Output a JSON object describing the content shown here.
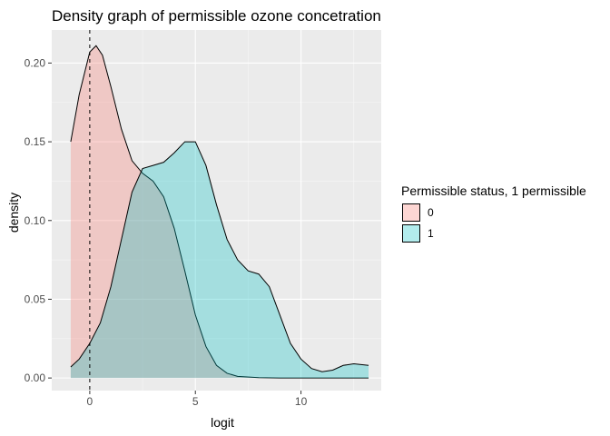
{
  "chart_data": {
    "type": "area",
    "title": "Density graph of permissible ozone concetration",
    "xlabel": "logit",
    "ylabel": "density",
    "xlim": [
      -1.8,
      13.8
    ],
    "ylim": [
      -0.008,
      0.221
    ],
    "x_ticks": [
      0,
      5,
      10
    ],
    "y_ticks": [
      0.0,
      0.05,
      0.1,
      0.15,
      0.2
    ],
    "y_tick_labels": [
      "0.00",
      "0.05",
      "0.10",
      "0.15",
      "0.20"
    ],
    "grid": true,
    "background": "#EBEBEB",
    "vline": {
      "x": 0,
      "style": "dashed"
    },
    "legend": {
      "title": "Permissible status, 1 permissible",
      "position": "right"
    },
    "series": [
      {
        "name": "0",
        "fill": "#F8766D",
        "x": [
          -0.9,
          -0.5,
          0.0,
          0.3,
          0.6,
          1.0,
          1.5,
          2.0,
          2.5,
          3.0,
          3.5,
          4.0,
          4.5,
          5.0,
          5.5,
          6.0,
          6.5,
          7.0,
          8.0,
          9.0,
          10.0,
          11.0,
          12.0,
          13.2
        ],
        "y": [
          0.15,
          0.18,
          0.207,
          0.211,
          0.205,
          0.185,
          0.158,
          0.138,
          0.13,
          0.125,
          0.115,
          0.095,
          0.068,
          0.04,
          0.02,
          0.008,
          0.003,
          0.001,
          0.0002,
          0.0,
          0.0,
          0.0,
          0.0,
          0.0
        ]
      },
      {
        "name": "1",
        "fill": "#00BFC4",
        "x": [
          -0.9,
          -0.5,
          0.0,
          0.5,
          1.0,
          1.5,
          2.0,
          2.5,
          3.0,
          3.5,
          4.0,
          4.5,
          5.0,
          5.5,
          6.0,
          6.5,
          7.0,
          7.5,
          8.0,
          8.5,
          9.0,
          9.5,
          10.0,
          10.5,
          11.0,
          11.5,
          12.0,
          12.5,
          13.2
        ],
        "y": [
          0.007,
          0.012,
          0.022,
          0.035,
          0.058,
          0.088,
          0.118,
          0.133,
          0.135,
          0.137,
          0.143,
          0.15,
          0.15,
          0.135,
          0.11,
          0.088,
          0.075,
          0.068,
          0.066,
          0.058,
          0.04,
          0.022,
          0.012,
          0.006,
          0.004,
          0.005,
          0.008,
          0.009,
          0.008
        ]
      }
    ]
  }
}
